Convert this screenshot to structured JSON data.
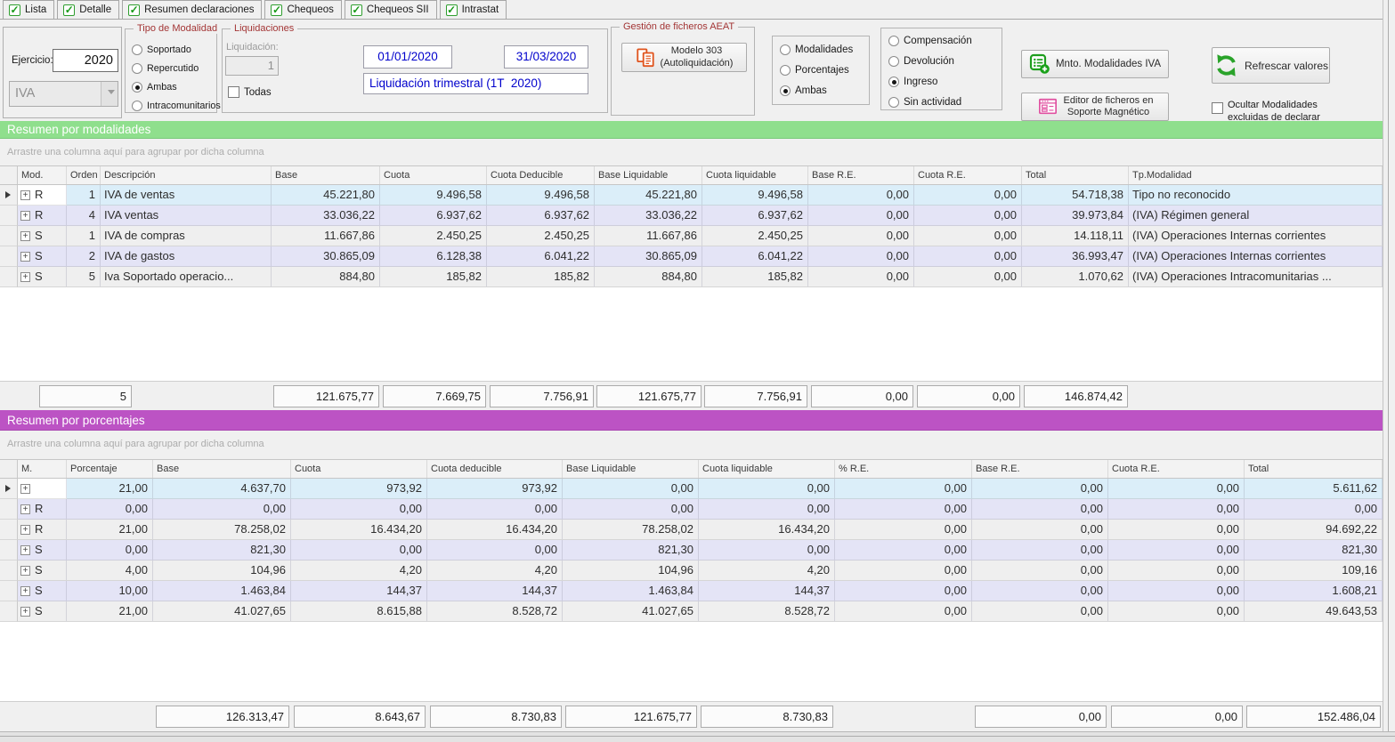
{
  "colors": {
    "header_green": "#8FDF8D",
    "header_purple": "#BC53C4"
  },
  "tabs": [
    {
      "label": "Lista",
      "checked": true
    },
    {
      "label": "Detalle",
      "checked": true
    },
    {
      "label": "Resumen declaraciones",
      "checked": true
    },
    {
      "label": "Chequeos",
      "checked": true
    },
    {
      "label": "Chequeos SII",
      "checked": true
    },
    {
      "label": "Intrastat",
      "checked": true
    }
  ],
  "toolbar": {
    "ejercicio_label": "Ejercicio:",
    "ejercicio_value": "2020",
    "iva_value": "IVA",
    "tipo_modalidad": {
      "title": "Tipo de Modalidad",
      "options": [
        {
          "label": "Soportado",
          "selected": false
        },
        {
          "label": "Repercutido",
          "selected": false
        },
        {
          "label": "Ambas",
          "selected": true
        },
        {
          "label": "Intracomunitarios",
          "selected": false
        }
      ]
    },
    "liquidaciones": {
      "title": "Liquidaciones",
      "liquidacion_label": "Liquidación:",
      "liquidacion_value": "1",
      "todas_label": "Todas",
      "date_from": "01/01/2020",
      "date_to": "31/03/2020",
      "period": "Liquidación trimestral (1T  2020)"
    },
    "aeat": {
      "title": "Gestión de ficheros AEAT",
      "modelo_button_line1": "Modelo 303",
      "modelo_button_line2": "(Autoliquidación)"
    },
    "view_mode": {
      "options": [
        {
          "label": "Modalidades",
          "selected": false
        },
        {
          "label": "Porcentajes",
          "selected": false
        },
        {
          "label": "Ambas",
          "selected": true
        }
      ]
    },
    "result_mode": {
      "options": [
        {
          "label": "Compensación",
          "selected": false
        },
        {
          "label": "Devolución",
          "selected": false
        },
        {
          "label": "Ingreso",
          "selected": true
        },
        {
          "label": "Sin actividad",
          "selected": false
        }
      ]
    },
    "mnto_button": "Mnto. Modalidades IVA",
    "editor_button_line1": "Editor de ficheros en",
    "editor_button_line2": "Soporte Magnético",
    "refresh_button": "Refrescar valores",
    "ocultar_line1": "Ocultar Modalidades",
    "ocultar_line2": "excluidas de declarar"
  },
  "modalidades": {
    "title": "Resumen por modalidades",
    "group_hint": "Arrastre una columna aquí para agrupar por dicha columna",
    "columns": [
      "Mod.",
      "Orden",
      "Descripción",
      "Base",
      "Cuota",
      "Cuota Deducible",
      "Base Liquidable",
      "Cuota liquidable",
      "Base R.E.",
      "Cuota R.E.",
      "Total",
      "Tp.Modalidad"
    ],
    "rows": [
      {
        "mod": "R",
        "orden": "1",
        "descripcion": "IVA de ventas",
        "base": "45.221,80",
        "cuota": "9.496,58",
        "cuota_deducible": "9.496,58",
        "base_liquidable": "45.221,80",
        "cuota_liquidable": "9.496,58",
        "base_re": "0,00",
        "cuota_re": "0,00",
        "total": "54.718,38",
        "tp_modalidad": "Tipo no reconocido"
      },
      {
        "mod": "R",
        "orden": "4",
        "descripcion": "IVA ventas",
        "base": "33.036,22",
        "cuota": "6.937,62",
        "cuota_deducible": "6.937,62",
        "base_liquidable": "33.036,22",
        "cuota_liquidable": "6.937,62",
        "base_re": "0,00",
        "cuota_re": "0,00",
        "total": "39.973,84",
        "tp_modalidad": "(IVA) Régimen general"
      },
      {
        "mod": "S",
        "orden": "1",
        "descripcion": "IVA de compras",
        "base": "11.667,86",
        "cuota": "2.450,25",
        "cuota_deducible": "2.450,25",
        "base_liquidable": "11.667,86",
        "cuota_liquidable": "2.450,25",
        "base_re": "0,00",
        "cuota_re": "0,00",
        "total": "14.118,11",
        "tp_modalidad": "(IVA) Operaciones Internas corrientes"
      },
      {
        "mod": "S",
        "orden": "2",
        "descripcion": "IVA de gastos",
        "base": "30.865,09",
        "cuota": "6.128,38",
        "cuota_deducible": "6.041,22",
        "base_liquidable": "30.865,09",
        "cuota_liquidable": "6.041,22",
        "base_re": "0,00",
        "cuota_re": "0,00",
        "total": "36.993,47",
        "tp_modalidad": "(IVA) Operaciones Internas corrientes"
      },
      {
        "mod": "S",
        "orden": "5",
        "descripcion": "Iva Soportado operacio...",
        "base": "884,80",
        "cuota": "185,82",
        "cuota_deducible": "185,82",
        "base_liquidable": "884,80",
        "cuota_liquidable": "185,82",
        "base_re": "0,00",
        "cuota_re": "0,00",
        "total": "1.070,62",
        "tp_modalidad": "(IVA) Operaciones Intracomunitarias ..."
      }
    ],
    "footer": {
      "count": "5",
      "base": "121.675,77",
      "cuota": "7.669,75",
      "cuota_deducible": "7.756,91",
      "base_liquidable": "121.675,77",
      "cuota_liquidable": "7.756,91",
      "base_re": "0,00",
      "cuota_re": "0,00",
      "total": "146.874,42"
    }
  },
  "porcentajes": {
    "title": "Resumen por porcentajes",
    "group_hint": "Arrastre una columna aquí para agrupar por dicha columna",
    "columns": [
      "M.",
      "Porcentaje",
      "Base",
      "Cuota",
      "Cuota deducible",
      "Base Liquidable",
      "Cuota liquidable",
      "% R.E.",
      "Base R.E.",
      "Cuota R.E.",
      "Total"
    ],
    "rows": [
      {
        "m": "",
        "porcentaje": "21,00",
        "base": "4.637,70",
        "cuota": "973,92",
        "cuota_deducible": "973,92",
        "base_liquidable": "0,00",
        "cuota_liquidable": "0,00",
        "pct_re": "0,00",
        "base_re": "0,00",
        "cuota_re": "0,00",
        "total": "5.611,62"
      },
      {
        "m": "R",
        "porcentaje": "0,00",
        "base": "0,00",
        "cuota": "0,00",
        "cuota_deducible": "0,00",
        "base_liquidable": "0,00",
        "cuota_liquidable": "0,00",
        "pct_re": "0,00",
        "base_re": "0,00",
        "cuota_re": "0,00",
        "total": "0,00"
      },
      {
        "m": "R",
        "porcentaje": "21,00",
        "base": "78.258,02",
        "cuota": "16.434,20",
        "cuota_deducible": "16.434,20",
        "base_liquidable": "78.258,02",
        "cuota_liquidable": "16.434,20",
        "pct_re": "0,00",
        "base_re": "0,00",
        "cuota_re": "0,00",
        "total": "94.692,22"
      },
      {
        "m": "S",
        "porcentaje": "0,00",
        "base": "821,30",
        "cuota": "0,00",
        "cuota_deducible": "0,00",
        "base_liquidable": "821,30",
        "cuota_liquidable": "0,00",
        "pct_re": "0,00",
        "base_re": "0,00",
        "cuota_re": "0,00",
        "total": "821,30"
      },
      {
        "m": "S",
        "porcentaje": "4,00",
        "base": "104,96",
        "cuota": "4,20",
        "cuota_deducible": "4,20",
        "base_liquidable": "104,96",
        "cuota_liquidable": "4,20",
        "pct_re": "0,00",
        "base_re": "0,00",
        "cuota_re": "0,00",
        "total": "109,16"
      },
      {
        "m": "S",
        "porcentaje": "10,00",
        "base": "1.463,84",
        "cuota": "144,37",
        "cuota_deducible": "144,37",
        "base_liquidable": "1.463,84",
        "cuota_liquidable": "144,37",
        "pct_re": "0,00",
        "base_re": "0,00",
        "cuota_re": "0,00",
        "total": "1.608,21"
      },
      {
        "m": "S",
        "porcentaje": "21,00",
        "base": "41.027,65",
        "cuota": "8.615,88",
        "cuota_deducible": "8.528,72",
        "base_liquidable": "41.027,65",
        "cuota_liquidable": "8.528,72",
        "pct_re": "0,00",
        "base_re": "0,00",
        "cuota_re": "0,00",
        "total": "49.643,53"
      }
    ],
    "footer": {
      "base": "126.313,47",
      "cuota": "8.643,67",
      "cuota_deducible": "8.730,83",
      "base_liquidable": "121.675,77",
      "cuota_liquidable": "8.730,83",
      "base_re": "0,00",
      "cuota_re": "0,00",
      "total": "152.486,04"
    }
  }
}
